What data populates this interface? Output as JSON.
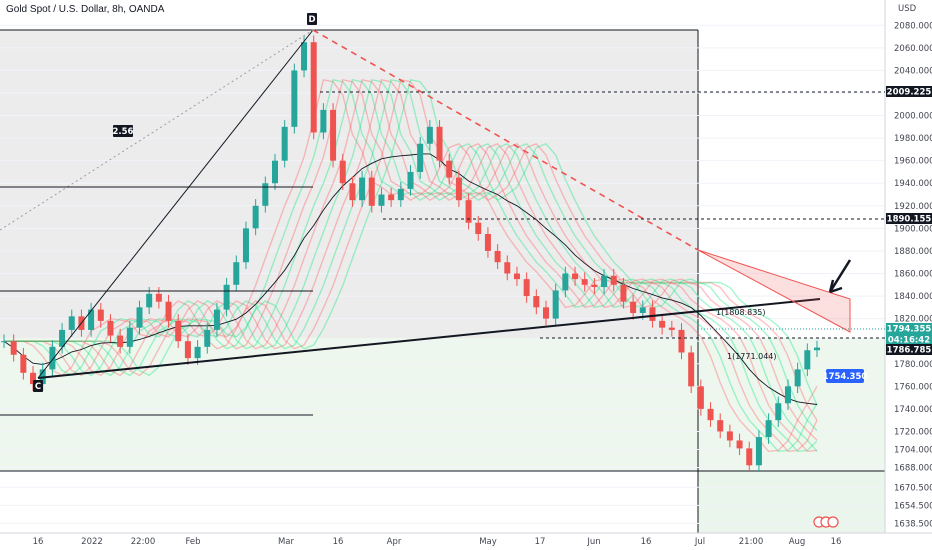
{
  "title": "Gold Spot / U.S. Dollar, 8h, OANDA",
  "currency": "USD",
  "colors": {
    "up": "#26a69a",
    "down": "#ef5350",
    "grid": "#f0f3fa",
    "label_dark": "#131722",
    "label_blue": "#2962ff",
    "ribbon_up": "#00e676",
    "ribbon_down": "#ff5252"
  },
  "chart_data": {
    "type": "candlestick",
    "symbol": "XAUUSD",
    "timeframe": "8h",
    "y_ticks": [
      1638.5,
      1654.5,
      1670.5,
      1688.0,
      1704.0,
      1720.0,
      1740.0,
      1760.0,
      1780.0,
      1800.0,
      1820.0,
      1840.0,
      1860.0,
      1880.0,
      1900.0,
      1920.0,
      1940.0,
      1960.0,
      1980.0,
      2000.0,
      2020.0,
      2040.0,
      2060.0,
      2080.0
    ],
    "y_tick_labels": [
      "1638.500",
      "1654.500",
      "1670.500",
      "1688.000",
      "1704.000",
      "1720.000",
      "1740.000",
      "1760.000",
      "1780.000",
      "1800.000",
      "1820.000",
      "1840.000",
      "1860.000",
      "1880.000",
      "1900.000",
      "1920.000",
      "1940.000",
      "1960.000",
      "1980.000",
      "2000.000",
      "2020.000",
      "2040.000",
      "2060.000",
      "2080.000"
    ],
    "x_tick_labels": [
      "16",
      "2022",
      "22:00",
      "Feb",
      "Mar",
      "16",
      "Apr",
      "May",
      "17",
      "Jun",
      "16",
      "Jul",
      "21:00",
      "Aug",
      "16"
    ],
    "price_tags": [
      {
        "label": "2009.225",
        "value": 2009.225,
        "style": "dark"
      },
      {
        "label": "1890.155",
        "value": 1890.155,
        "style": "dark"
      },
      {
        "label": "1794.355",
        "value": 1794.355,
        "style": "teal"
      },
      {
        "label": "04:16:42",
        "value": 1784.5,
        "style": "teal"
      },
      {
        "label": "1786.785",
        "value": 1786.785,
        "style": "dark"
      },
      {
        "label": "1754.350",
        "value": 1754.35,
        "style": "blue"
      }
    ],
    "annotations": [
      {
        "text": "D",
        "kind": "pivot"
      },
      {
        "text": "C",
        "kind": "pivot"
      },
      {
        "text": "2.56",
        "kind": "ratio"
      },
      {
        "text": "1(1808.835)",
        "kind": "level",
        "value": 1808.835
      },
      {
        "text": "1(1771.044)",
        "kind": "level",
        "value": 1771.044
      }
    ],
    "close_series": [
      1800,
      1788,
      1772,
      1762,
      1775,
      1795,
      1810,
      1822,
      1810,
      1828,
      1818,
      1805,
      1795,
      1812,
      1830,
      1842,
      1835,
      1818,
      1800,
      1785,
      1795,
      1810,
      1828,
      1850,
      1870,
      1900,
      1920,
      1940,
      1960,
      1990,
      2040,
      2065,
      1985,
      2005,
      1960,
      1940,
      1925,
      1945,
      1920,
      1930,
      1925,
      1935,
      1950,
      1975,
      1990,
      1960,
      1945,
      1925,
      1905,
      1895,
      1880,
      1870,
      1860,
      1855,
      1840,
      1830,
      1820,
      1845,
      1860,
      1855,
      1850,
      1848,
      1858,
      1850,
      1835,
      1825,
      1830,
      1818,
      1812,
      1810,
      1790,
      1760,
      1740,
      1730,
      1720,
      1712,
      1705,
      1690,
      1715,
      1730,
      1745,
      1760,
      1775,
      1792,
      1794.355
    ],
    "ylim": [
      1630,
      2090
    ]
  }
}
